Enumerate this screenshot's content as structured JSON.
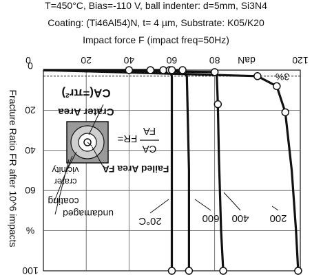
{
  "header": {
    "conditions_line": "T=450°C, Bias=-110 V, ball indenter: d=5mm, Si3N4",
    "coating_line": "Coating: (Ti46Al54)N, t= 4 µm, Substrate: K05/K20",
    "x_axis_title": "Impact force F (impact freq=50Hz)"
  },
  "annotations": {
    "crater_area": "Crater Area",
    "ca_formula": "CA(=πr²)",
    "fr_label": "FR=",
    "fr_numerator": "CA",
    "fr_denominator": "FA",
    "failed_area": "Failed Area FA",
    "crater_vicinity_1": "crater",
    "crater_vicinity_2": "vicinity",
    "coating": "coating",
    "undamaged": "undamaged",
    "threshold": "3%"
  },
  "chart_data": {
    "type": "line",
    "orientation": "rotated-180",
    "title": "",
    "xlabel": "Impact force F (impact freq=50Hz)",
    "x_unit": "daN",
    "ylabel": "Fracture Ratio FR after 10^6 impacts",
    "y_unit": "%",
    "xlim": [
      0,
      120
    ],
    "ylim": [
      0,
      100
    ],
    "x_ticks": [
      0,
      20,
      40,
      60,
      80,
      120
    ],
    "x_tick_labels": [
      "0",
      "20",
      "40",
      "60",
      "80",
      "120"
    ],
    "y_ticks": [
      0,
      20,
      40,
      60,
      80,
      100
    ],
    "y_tick_labels": [
      "0",
      "20",
      "40",
      "60",
      "%",
      "100"
    ],
    "threshold_percent": 3,
    "grid": true,
    "series": [
      {
        "name": "20°C",
        "x": [
          0,
          40,
          56,
          59,
          60,
          60,
          60,
          60
        ],
        "y": [
          0,
          0,
          0,
          0,
          3,
          40,
          80,
          100
        ],
        "markers_x": [
          40,
          56,
          59,
          60,
          60
        ],
        "markers_y": [
          0,
          0,
          0,
          0,
          100
        ]
      },
      {
        "name": "600",
        "x": [
          0,
          50,
          65,
          67,
          68,
          68,
          68
        ],
        "y": [
          0,
          0,
          0,
          3,
          50,
          90,
          100
        ],
        "markers_x": [
          50,
          65,
          68
        ],
        "markers_y": [
          0,
          0,
          100
        ]
      },
      {
        "name": "400",
        "x": [
          0,
          80,
          81,
          81.5,
          82,
          83,
          84
        ],
        "y": [
          0,
          1,
          3,
          17,
          44,
          80,
          100
        ],
        "markers_x": [
          80,
          81.5,
          84
        ],
        "markers_y": [
          1,
          17,
          100
        ]
      },
      {
        "name": "200",
        "x": [
          0,
          100,
          109,
          113,
          116,
          118,
          119
        ],
        "y": [
          0,
          3,
          8,
          21,
          50,
          80,
          100
        ],
        "markers_x": [
          100,
          109,
          113,
          119
        ],
        "markers_y": [
          3,
          8,
          21,
          100
        ]
      }
    ]
  }
}
